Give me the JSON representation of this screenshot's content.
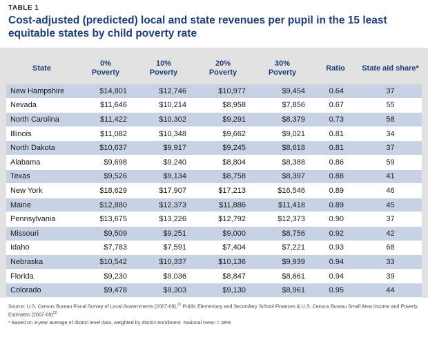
{
  "header": {
    "table_label": "TABLE 1",
    "title": "Cost-adjusted (predicted)  local and state revenues per pupil in the 15 least equitable states by child poverty rate"
  },
  "columns": [
    "State",
    "0%\nPoverty",
    "10%\nPoverty",
    "20%\nPoverty",
    "30%\nPoverty",
    "Ratio",
    "State aid share*"
  ],
  "rows": [
    [
      "New Hampshire",
      "$14,801",
      "$12,746",
      "$10,977",
      "$9,454",
      "0.64",
      "37"
    ],
    [
      "Nevada",
      "$11,646",
      "$10,214",
      "$8,958",
      "$7,856",
      "0.67",
      "55"
    ],
    [
      "North Carolina",
      "$11,422",
      "$10,302",
      "$9,291",
      "$8,379",
      "0.73",
      "58"
    ],
    [
      "Illinois",
      "$11,082",
      "$10,348",
      "$9,662",
      "$9,021",
      "0.81",
      "34"
    ],
    [
      "North Dakota",
      "$10,637",
      "$9,917",
      "$9,245",
      "$8,618",
      "0.81",
      "37"
    ],
    [
      "Alabama",
      "$9,698",
      "$9,240",
      "$8,804",
      "$8,388",
      "0.86",
      "59"
    ],
    [
      "Texas",
      "$9,526",
      "$9,134",
      "$8,758",
      "$8,397",
      "0.88",
      "41"
    ],
    [
      "New York",
      "$18,629",
      "$17,907",
      "$17,213",
      "$16,546",
      "0.89",
      "46"
    ],
    [
      "Maine",
      "$12,880",
      "$12,373",
      "$11,886",
      "$11,418",
      "0.89",
      "45"
    ],
    [
      "Pennsylvania",
      "$13,675",
      "$13,226",
      "$12,792",
      "$12,373",
      "0.90",
      "37"
    ],
    [
      "Missouri",
      "$9,509",
      "$9,251",
      "$9,000",
      "$8,756",
      "0.92",
      "42"
    ],
    [
      "Idaho",
      "$7,783",
      "$7,591",
      "$7,404",
      "$7,221",
      "0.93",
      "68"
    ],
    [
      "Nebraska",
      "$10,542",
      "$10,337",
      "$10,136",
      "$9,939",
      "0.94",
      "33"
    ],
    [
      "Florida",
      "$9,230",
      "$9,036",
      "$8,847",
      "$8,661",
      "0.94",
      "39"
    ],
    [
      "Colorado",
      "$9,478",
      "$9,303",
      "$9,130",
      "$8,961",
      "0.95",
      "44"
    ]
  ],
  "footer": {
    "source_1": "Source: U.S. Census Bureau Fiscal Survey of Local Governments (2007-09),",
    "source_sup_1": "21",
    "source_2": "  Public Elementary and Secondary School Finances & U.S. Census Bureau Small Area Income and Poverty Estimates (2007-09)",
    "source_sup_2": "22",
    "note": "* Based on 3-year average of district level data, weighted by district enrollment.  National mean = 48%"
  }
}
